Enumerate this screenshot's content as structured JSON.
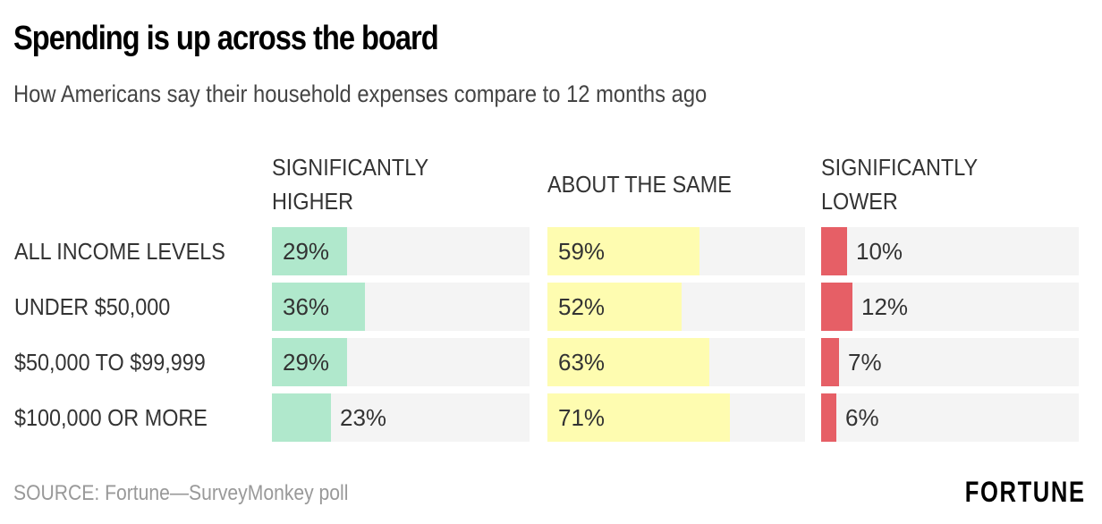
{
  "chart_data": {
    "type": "bar",
    "title": "Spending is up across the board",
    "subtitle": "How Americans say their household expenses compare to 12 months ago",
    "categories": [
      "ALL INCOME LEVELS",
      "UNDER $50,000",
      "$50,000 TO $99,999",
      "$100,000 OR MORE"
    ],
    "series": [
      {
        "name": "SIGNIFICANTLY HIGHER",
        "color": "#b0e8cc",
        "values": [
          29,
          36,
          29,
          23
        ],
        "labels": [
          "29%",
          "36%",
          "29%",
          "23%"
        ]
      },
      {
        "name": "ABOUT THE SAME",
        "color": "#fefcb0",
        "values": [
          59,
          52,
          63,
          71
        ],
        "labels": [
          "59%",
          "52%",
          "63%",
          "71%"
        ]
      },
      {
        "name": "SIGNIFICANTLY LOWER",
        "color": "#e65f66",
        "values": [
          10,
          12,
          7,
          6
        ],
        "labels": [
          "10%",
          "12%",
          "7%",
          "6%"
        ]
      }
    ],
    "xlim": [
      0,
      100
    ],
    "unit": "%",
    "track_color": "#f4f4f4"
  },
  "footer": {
    "source": "SOURCE: Fortune—SurveyMonkey poll",
    "logo": "FORTUNE"
  }
}
